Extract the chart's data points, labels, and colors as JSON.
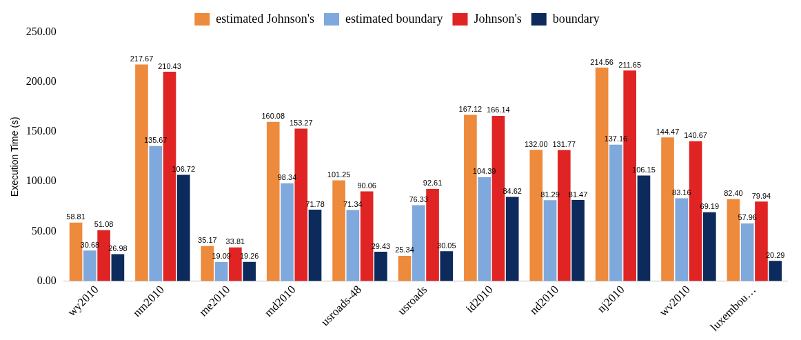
{
  "chart_data": {
    "type": "bar",
    "ylabel": "Execution Time (s)",
    "categories": [
      "wy2010",
      "nm2010",
      "me2010",
      "md2010",
      "usroads-48",
      "usroads",
      "id2010",
      "nd2010",
      "nj2010",
      "wv2010",
      "luxembou…"
    ],
    "series": [
      {
        "name": "estimated Johnson's",
        "color": "#ed8a3c",
        "values": [
          58.81,
          217.67,
          35.17,
          160.08,
          101.25,
          25.34,
          167.12,
          132.0,
          214.56,
          144.47,
          82.4
        ],
        "value_labels": [
          "58.81",
          "217.67",
          "35.17",
          "160.08",
          "101.25",
          "25.34",
          "167.12",
          "132.00",
          "214.56",
          "144.47",
          "82.40"
        ]
      },
      {
        "name": "estimated boundary",
        "color": "#7fa8dc",
        "values": [
          30.68,
          135.67,
          19.09,
          98.34,
          71.34,
          76.33,
          104.39,
          81.29,
          137.16,
          83.16,
          57.96
        ],
        "value_labels": [
          "30.68",
          "135.67",
          "19.09",
          "98.34",
          "71.34",
          "76.33",
          "104.39",
          "81.29",
          "137.16",
          "83.16",
          "57.96"
        ]
      },
      {
        "name": "Johnson's",
        "color": "#e02424",
        "values": [
          51.08,
          210.43,
          33.81,
          153.27,
          90.06,
          92.61,
          166.14,
          131.77,
          211.65,
          140.67,
          79.94
        ],
        "value_labels": [
          "51.08",
          "210.43",
          "33.81",
          "153.27",
          "90.06",
          "92.61",
          "166.14",
          "131.77",
          "211.65",
          "140.67",
          "79.94"
        ]
      },
      {
        "name": "boundary",
        "color": "#0c2a5c",
        "values": [
          26.98,
          106.72,
          19.26,
          71.78,
          29.43,
          30.05,
          84.62,
          81.47,
          106.15,
          69.19,
          20.29
        ],
        "value_labels": [
          "26.98",
          "106.72",
          "19.26",
          "71.78",
          "29.43",
          "30.05",
          "84.62",
          "81.47",
          "106.15",
          "69.19",
          "20.29"
        ]
      }
    ],
    "ylim": [
      0,
      250
    ],
    "yticks": [
      {
        "value": 0,
        "label": "0.00"
      },
      {
        "value": 50,
        "label": "50.00"
      },
      {
        "value": 100,
        "label": "100.00"
      },
      {
        "value": 150,
        "label": "150.00"
      },
      {
        "value": 200,
        "label": "200.00"
      },
      {
        "value": 250,
        "label": "250.00"
      }
    ],
    "grid": false,
    "legend": "top"
  }
}
